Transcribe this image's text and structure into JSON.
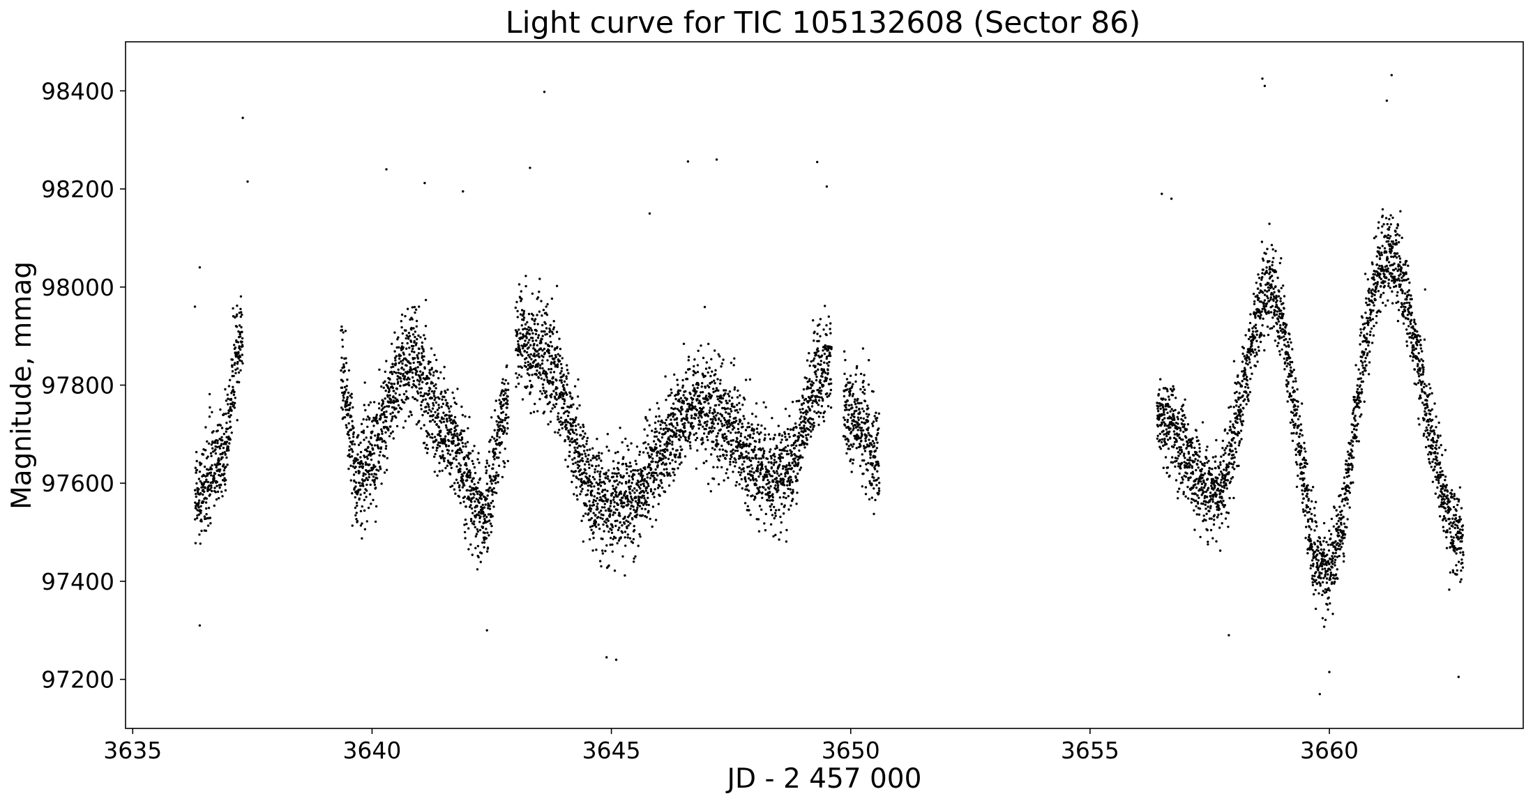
{
  "chart_data": {
    "type": "scatter",
    "title": "Light curve for TIC 105132608 (Sector 86)",
    "xlabel": "JD - 2 457 000",
    "ylabel": "Magnitude, mmag",
    "xlim": [
      3634.85,
      3664.05
    ],
    "ylim": [
      97100,
      98500
    ],
    "xticks": [
      3635,
      3640,
      3645,
      3650,
      3655,
      3660
    ],
    "xtick_labels": [
      "3635",
      "3640",
      "3645",
      "3650",
      "3655",
      "3660"
    ],
    "yticks": [
      97200,
      97400,
      97600,
      97800,
      98000,
      98200,
      98400
    ],
    "ytick_labels": [
      "97200",
      "97400",
      "97600",
      "97800",
      "98000",
      "98200",
      "98400"
    ],
    "grid": false,
    "marker_color": "#000000",
    "series": [
      {
        "segments": [
          {
            "x_start": 3636.3,
            "x_end": 3637.3,
            "trend_x": [
              3636.3,
              3636.8,
              3637.3
            ],
            "trend_y": [
              97560,
              97650,
              97900
            ],
            "spread": 80
          },
          {
            "x_start": 3639.35,
            "x_end": 3642.85,
            "trend_x": [
              3639.35,
              3639.7,
              3640.8,
              3641.5,
              3642.3,
              3642.85
            ],
            "trend_y": [
              97820,
              97620,
              97840,
              97720,
              97540,
              97760
            ],
            "spread": 85
          },
          {
            "x_start": 3643.0,
            "x_end": 3649.6,
            "trend_x": [
              3643.0,
              3643.5,
              3644.8,
              3645.2,
              3646.8,
              3648.5,
              3649.6
            ],
            "trend_y": [
              97900,
              97870,
              97560,
              97560,
              97760,
              97610,
              97850
            ],
            "spread": 85
          },
          {
            "x_start": 3649.85,
            "x_end": 3650.6,
            "trend_x": [
              3649.85,
              3650.2,
              3650.6
            ],
            "trend_y": [
              97760,
              97720,
              97650
            ],
            "spread": 85
          },
          {
            "x_start": 3656.4,
            "x_end": 3662.8,
            "trend_x": [
              3656.4,
              3657.6,
              3658.75,
              3659.9,
              3661.2,
              3662.8
            ],
            "trend_y": [
              97740,
              97580,
              97990,
              97420,
              98060,
              97480
            ],
            "spread": 70
          }
        ],
        "outliers": [
          [
            3637.3,
            98345
          ],
          [
            3643.6,
            98398
          ],
          [
            3637.4,
            98215
          ],
          [
            3640.3,
            98240
          ],
          [
            3641.1,
            98212
          ],
          [
            3641.9,
            98195
          ],
          [
            3643.3,
            98243
          ],
          [
            3646.6,
            98256
          ],
          [
            3647.2,
            98260
          ],
          [
            3649.3,
            98255
          ],
          [
            3649.5,
            98205
          ],
          [
            3658.6,
            98425
          ],
          [
            3658.65,
            98410
          ],
          [
            3661.3,
            98432
          ],
          [
            3661.2,
            98380
          ],
          [
            3644.9,
            97245
          ],
          [
            3645.1,
            97240
          ],
          [
            3642.4,
            97300
          ],
          [
            3659.8,
            97170
          ],
          [
            3662.7,
            97205
          ],
          [
            3657.9,
            97290
          ],
          [
            3645.8,
            98150
          ],
          [
            3636.4,
            98040
          ],
          [
            3636.3,
            97960
          ],
          [
            3656.5,
            98190
          ],
          [
            3656.7,
            98180
          ],
          [
            3660.0,
            97215
          ],
          [
            3636.4,
            97310
          ],
          [
            3662.0,
            97995
          ]
        ]
      }
    ]
  }
}
